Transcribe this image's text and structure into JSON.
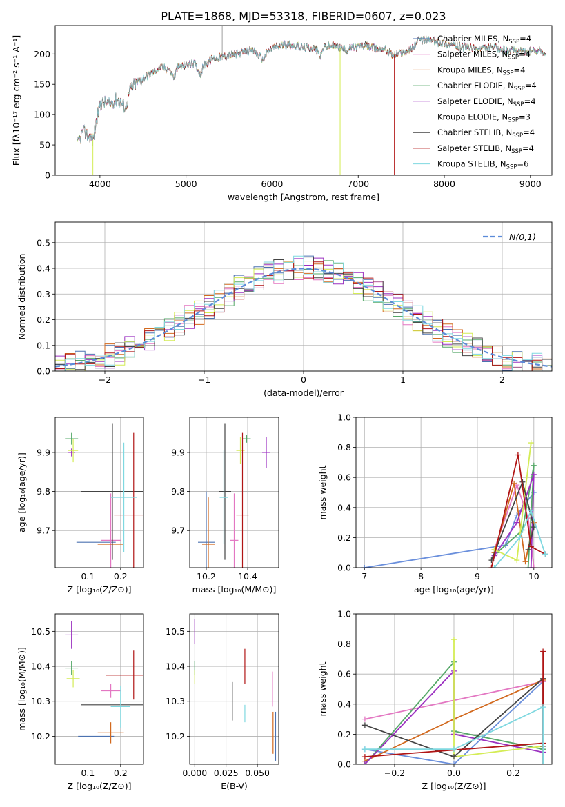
{
  "figure_title": "PLATE=1868, MJD=53318, FIBERID=0607, z=0.023",
  "colors": {
    "chabrier_miles": "#4c72b0",
    "salpeter_miles": "#e377c2",
    "kroupa_miles": "#d2691e",
    "chabrier_elodie": "#55a868",
    "salpeter_elodie": "#9b30c0",
    "kroupa_elodie": "#d4ec55",
    "chabrier_stelib": "#444444",
    "salpeter_stelib": "#b01515",
    "kroupa_stelib": "#7fd8e0",
    "chabrier_miles_age": "#6a8fdc",
    "normal_curve": "#5b8bd9"
  },
  "legend": [
    {
      "key": "chabrier_miles",
      "label_main": "Chabrier MILES, N",
      "sub": "SSP",
      "label_end": "=4"
    },
    {
      "key": "salpeter_miles",
      "label_main": "Salpeter MILES, N",
      "sub": "SSP",
      "label_end": "=4"
    },
    {
      "key": "kroupa_miles",
      "label_main": "Kroupa MILES, N",
      "sub": "SSP",
      "label_end": "=4"
    },
    {
      "key": "chabrier_elodie",
      "label_main": "Chabrier ELODIE, N",
      "sub": "SSP",
      "label_end": "=4"
    },
    {
      "key": "salpeter_elodie",
      "label_main": "Salpeter ELODIE, N",
      "sub": "SSP",
      "label_end": "=4"
    },
    {
      "key": "kroupa_elodie",
      "label_main": "Kroupa ELODIE, N",
      "sub": "SSP",
      "label_end": "=3"
    },
    {
      "key": "chabrier_stelib",
      "label_main": "Chabrier STELIB, N",
      "sub": "SSP",
      "label_end": "=4"
    },
    {
      "key": "salpeter_stelib",
      "label_main": "Salpeter STELIB, N",
      "sub": "SSP",
      "label_end": "=4"
    },
    {
      "key": "kroupa_stelib",
      "label_main": "Kroupa STELIB, N",
      "sub": "SSP",
      "label_end": "=6"
    }
  ],
  "chart_data": [
    {
      "id": "spectrum",
      "type": "line",
      "xlabel": "wavelength [Angstrom, rest frame]",
      "ylabel": "Flux [fλ10⁻¹⁷ erg cm⁻² s⁻¹ A⁻¹]",
      "xlim": [
        3480,
        9250
      ],
      "ylim": [
        0,
        247
      ],
      "xticks": [
        4000,
        5000,
        6000,
        7000,
        8000,
        9000
      ],
      "yticks": [
        0,
        50,
        100,
        150,
        200
      ],
      "continuum": [
        [
          3740,
          50
        ],
        [
          3800,
          72
        ],
        [
          3860,
          66
        ],
        [
          3920,
          58
        ],
        [
          3960,
          90
        ],
        [
          4000,
          118
        ],
        [
          4050,
          120
        ],
        [
          4100,
          116
        ],
        [
          4200,
          126
        ],
        [
          4250,
          118
        ],
        [
          4300,
          112
        ],
        [
          4350,
          142
        ],
        [
          4400,
          150
        ],
        [
          4500,
          160
        ],
        [
          4600,
          168
        ],
        [
          4700,
          178
        ],
        [
          4800,
          176
        ],
        [
          4860,
          160
        ],
        [
          4900,
          178
        ],
        [
          5000,
          182
        ],
        [
          5100,
          185
        ],
        [
          5170,
          165
        ],
        [
          5200,
          180
        ],
        [
          5300,
          192
        ],
        [
          5400,
          195
        ],
        [
          5500,
          198
        ],
        [
          5600,
          200
        ],
        [
          5700,
          204
        ],
        [
          5800,
          205
        ],
        [
          5890,
          190
        ],
        [
          5950,
          204
        ],
        [
          6000,
          210
        ],
        [
          6100,
          214
        ],
        [
          6200,
          216
        ],
        [
          6300,
          212
        ],
        [
          6400,
          210
        ],
        [
          6500,
          210
        ],
        [
          6563,
          196
        ],
        [
          6600,
          212
        ],
        [
          6700,
          214
        ],
        [
          6800,
          210
        ],
        [
          6870,
          205
        ],
        [
          6900,
          210
        ],
        [
          7000,
          212
        ],
        [
          7100,
          214
        ],
        [
          7200,
          208
        ],
        [
          7300,
          210
        ],
        [
          7400,
          198
        ],
        [
          7500,
          202
        ],
        [
          7600,
          206
        ],
        [
          7700,
          222
        ],
        [
          7800,
          224
        ],
        [
          7900,
          220
        ],
        [
          8000,
          218
        ],
        [
          8100,
          214
        ],
        [
          8200,
          212
        ],
        [
          8300,
          210
        ],
        [
          8400,
          208
        ],
        [
          8500,
          210
        ],
        [
          8600,
          210
        ],
        [
          8700,
          206
        ],
        [
          8800,
          206
        ],
        [
          8900,
          205
        ],
        [
          9000,
          204
        ],
        [
          9100,
          206
        ],
        [
          9180,
          202
        ]
      ],
      "artifacts": [
        {
          "series": "kroupa_elodie",
          "x": 3918,
          "y": 0
        },
        {
          "series": "kroupa_elodie",
          "x": 6790,
          "y": 0
        },
        {
          "series": "salpeter_stelib",
          "x": 7420,
          "y": 0
        }
      ]
    },
    {
      "id": "residual_hist",
      "type": "histogram",
      "xlabel": "(data-model)/error",
      "ylabel": "Normed distribution",
      "xlim": [
        -2.5,
        2.5
      ],
      "ylim": [
        0,
        0.58
      ],
      "xticks": [
        -2,
        -1,
        0,
        1,
        2
      ],
      "yticks": [
        0.0,
        0.1,
        0.2,
        0.3,
        0.4,
        0.5
      ],
      "bin_width": 0.1,
      "reference_curve": "N(0,1)",
      "series": [
        {
          "key": "chabrier_miles",
          "seed": 1
        },
        {
          "key": "salpeter_miles",
          "seed": 2
        },
        {
          "key": "kroupa_miles",
          "seed": 3
        },
        {
          "key": "chabrier_elodie",
          "seed": 4
        },
        {
          "key": "salpeter_elodie",
          "seed": 5
        },
        {
          "key": "kroupa_elodie",
          "seed": 6
        },
        {
          "key": "chabrier_stelib",
          "seed": 7
        },
        {
          "key": "salpeter_stelib",
          "seed": 8
        },
        {
          "key": "kroupa_stelib",
          "seed": 9
        }
      ]
    },
    {
      "id": "age_vs_Z",
      "type": "scatter",
      "xlabel": "Z [log₁₀(Z/Z⊙)]",
      "ylabel": "age  [log₁₀(age/yr)]",
      "xlim": [
        0.0,
        0.27
      ],
      "ylim": [
        9.605,
        9.99
      ],
      "xticks": [
        0.1,
        0.2
      ],
      "yticks": [
        9.7,
        9.8,
        9.9
      ],
      "points": [
        {
          "series": "chabrier_miles",
          "x": 0.125,
          "y": 9.67,
          "xerr": 0.06,
          "yerr": 0.0
        },
        {
          "series": "salpeter_miles",
          "x": 0.17,
          "y": 9.675,
          "xerr": 0.03,
          "yerr": 0.12
        },
        {
          "series": "kroupa_miles",
          "x": 0.17,
          "y": 9.665,
          "xerr": 0.04,
          "yerr": 0.0
        },
        {
          "series": "chabrier_elodie",
          "x": 0.05,
          "y": 9.935,
          "xerr": 0.02,
          "yerr": 0.015
        },
        {
          "series": "salpeter_elodie",
          "x": 0.05,
          "y": 9.9,
          "xerr": 0.01,
          "yerr": 0.01
        },
        {
          "series": "kroupa_elodie",
          "x": 0.055,
          "y": 9.905,
          "xerr": 0.015,
          "yerr": 0.03
        },
        {
          "series": "chabrier_stelib",
          "x": 0.175,
          "y": 9.8,
          "xerr": 0.095,
          "yerr": 0.175
        },
        {
          "series": "salpeter_stelib",
          "x": 0.24,
          "y": 9.74,
          "xerr": 0.06,
          "yerr": 0.21
        },
        {
          "series": "kroupa_stelib",
          "x": 0.21,
          "y": 9.785,
          "xerr": 0.04,
          "yerr": 0.14
        }
      ]
    },
    {
      "id": "age_vs_mass",
      "type": "scatter",
      "xlabel": "mass [log₁₀(M/M⊙)]",
      "ylabel": "",
      "xlim": [
        10.12,
        10.55
      ],
      "ylim": [
        9.605,
        9.99
      ],
      "xticks": [
        10.2,
        10.4
      ],
      "yticks": [
        9.7,
        9.8,
        9.9
      ],
      "points": [
        {
          "series": "chabrier_miles",
          "x": 10.2,
          "y": 9.67,
          "xerr": 0.04,
          "yerr": 0.13
        },
        {
          "series": "salpeter_miles",
          "x": 10.335,
          "y": 9.675,
          "xerr": 0.02,
          "yerr": 0.12
        },
        {
          "series": "kroupa_miles",
          "x": 10.21,
          "y": 9.665,
          "xerr": 0.03,
          "yerr": 0.12
        },
        {
          "series": "chabrier_elodie",
          "x": 10.395,
          "y": 9.935,
          "xerr": 0.02,
          "yerr": 0.01
        },
        {
          "series": "salpeter_elodie",
          "x": 10.49,
          "y": 9.9,
          "xerr": 0.02,
          "yerr": 0.04
        },
        {
          "series": "kroupa_elodie",
          "x": 10.365,
          "y": 9.905,
          "xerr": 0.02,
          "yerr": 0.035
        },
        {
          "series": "chabrier_stelib",
          "x": 10.29,
          "y": 9.8,
          "xerr": 0.03,
          "yerr": 0.175
        },
        {
          "series": "salpeter_stelib",
          "x": 10.375,
          "y": 9.74,
          "xerr": 0.03,
          "yerr": 0.21
        },
        {
          "series": "kroupa_stelib",
          "x": 10.285,
          "y": 9.785,
          "xerr": 0.02,
          "yerr": 0.12
        }
      ]
    },
    {
      "id": "weight_vs_age",
      "type": "line",
      "xlabel": "age  [log₁₀(age/yr)]",
      "ylabel": "mass weight",
      "xlim": [
        6.85,
        10.32
      ],
      "ylim": [
        0,
        1.0
      ],
      "xticks": [
        7,
        8,
        9,
        10
      ],
      "yticks": [
        0.0,
        0.2,
        0.4,
        0.6,
        0.8,
        1.0
      ],
      "series": [
        {
          "key": "chabrier_miles_age",
          "x": [
            7.0,
            9.5,
            9.7,
            10.0
          ],
          "y": [
            0.0,
            0.15,
            0.35,
            0.5
          ]
        },
        {
          "key": "salpeter_miles",
          "x": [
            9.3,
            9.7,
            9.9,
            10.0
          ],
          "y": [
            0.12,
            0.55,
            0.33,
            0.0
          ]
        },
        {
          "key": "kroupa_miles",
          "x": [
            9.3,
            9.65,
            9.85,
            10.0
          ],
          "y": [
            0.1,
            0.56,
            0.04,
            0.3
          ]
        },
        {
          "key": "chabrier_elodie",
          "x": [
            9.35,
            9.8,
            10.0,
            9.9
          ],
          "y": [
            0.1,
            0.25,
            0.68,
            0.0
          ]
        },
        {
          "key": "salpeter_elodie",
          "x": [
            9.3,
            9.7,
            10.0,
            9.95
          ],
          "y": [
            0.08,
            0.3,
            0.62,
            0.0
          ]
        },
        {
          "key": "kroupa_elodie",
          "x": [
            9.3,
            9.7,
            9.95
          ],
          "y": [
            0.12,
            0.05,
            0.83
          ]
        },
        {
          "key": "chabrier_stelib",
          "x": [
            9.25,
            9.8,
            10.0,
            9.9
          ],
          "y": [
            0.05,
            0.57,
            0.27,
            0.12
          ]
        },
        {
          "key": "salpeter_stelib",
          "x": [
            9.25,
            9.72,
            9.95,
            10.2
          ],
          "y": [
            0.0,
            0.75,
            0.14,
            0.09
          ]
        },
        {
          "key": "kroupa_stelib",
          "x": [
            9.3,
            9.75,
            9.95,
            10.2
          ],
          "y": [
            0.0,
            0.2,
            0.38,
            0.09
          ]
        }
      ]
    },
    {
      "id": "mass_vs_Z",
      "type": "scatter",
      "xlabel": "Z [log₁₀(Z/Z⊙)]",
      "ylabel": "mass [log₁₀(M/M⊙)]",
      "xlim": [
        0.0,
        0.27
      ],
      "ylim": [
        10.12,
        10.55
      ],
      "xticks": [
        0.1,
        0.2
      ],
      "yticks": [
        10.2,
        10.3,
        10.4,
        10.5
      ],
      "points": [
        {
          "series": "chabrier_miles",
          "x": 0.125,
          "y": 10.2,
          "xerr": 0.055,
          "yerr": 0.0
        },
        {
          "series": "salpeter_miles",
          "x": 0.17,
          "y": 10.33,
          "xerr": 0.03,
          "yerr": 0.02
        },
        {
          "series": "kroupa_miles",
          "x": 0.17,
          "y": 10.21,
          "xerr": 0.04,
          "yerr": 0.03
        },
        {
          "series": "chabrier_elodie",
          "x": 0.05,
          "y": 10.395,
          "xerr": 0.02,
          "yerr": 0.02
        },
        {
          "series": "salpeter_elodie",
          "x": 0.05,
          "y": 10.49,
          "xerr": 0.02,
          "yerr": 0.04
        },
        {
          "series": "kroupa_elodie",
          "x": 0.055,
          "y": 10.365,
          "xerr": 0.02,
          "yerr": 0.025
        },
        {
          "series": "chabrier_stelib",
          "x": 0.175,
          "y": 10.29,
          "xerr": 0.095,
          "yerr": 0.0
        },
        {
          "series": "salpeter_stelib",
          "x": 0.24,
          "y": 10.375,
          "xerr": 0.085,
          "yerr": 0.07
        },
        {
          "series": "kroupa_stelib",
          "x": 0.2,
          "y": 10.285,
          "xerr": 0.03,
          "yerr": 0.06
        }
      ]
    },
    {
      "id": "mass_vs_ebv",
      "type": "scatter",
      "xlabel": "E(B-V)",
      "ylabel": "",
      "xlim": [
        -0.004,
        0.067
      ],
      "ylim": [
        10.12,
        10.55
      ],
      "xticks": [
        0.0,
        0.025,
        0.05
      ],
      "xticklabels": [
        "0.000",
        "0.025",
        "0.050"
      ],
      "yticks": [
        10.2,
        10.3,
        10.4,
        10.5
      ],
      "points": [
        {
          "series": "chabrier_miles",
          "x": 0.0645,
          "y": 10.2,
          "xerr": 0.0,
          "yerr": 0.07
        },
        {
          "series": "salpeter_miles",
          "x": 0.062,
          "y": 10.335,
          "xerr": 0.0,
          "yerr": 0.05
        },
        {
          "series": "kroupa_miles",
          "x": 0.0625,
          "y": 10.21,
          "xerr": 0.0,
          "yerr": 0.06
        },
        {
          "series": "chabrier_elodie",
          "x": 0.0,
          "y": 10.395,
          "xerr": 0.0,
          "yerr": 0.02
        },
        {
          "series": "salpeter_elodie",
          "x": 0.0,
          "y": 10.5,
          "xerr": 0.0,
          "yerr": 0.035
        },
        {
          "series": "kroupa_elodie",
          "x": 0.0,
          "y": 10.37,
          "xerr": 0.0,
          "yerr": 0.02
        },
        {
          "series": "chabrier_stelib",
          "x": 0.03,
          "y": 10.3,
          "xerr": 0.0,
          "yerr": 0.055
        },
        {
          "series": "salpeter_stelib",
          "x": 0.04,
          "y": 10.4,
          "xerr": 0.0,
          "yerr": 0.05
        },
        {
          "series": "kroupa_stelib",
          "x": 0.04,
          "y": 10.265,
          "xerr": 0.0,
          "yerr": 0.025
        }
      ]
    },
    {
      "id": "weight_vs_Z",
      "type": "line",
      "xlabel": "Z [log₁₀(Z/Z⊙)]",
      "ylabel": "mass weight",
      "xlim": [
        -0.33,
        0.33
      ],
      "ylim": [
        0,
        1.0
      ],
      "xticks": [
        -0.2,
        0.0,
        0.2
      ],
      "xticklabels": [
        "−0.2",
        "0.0",
        "0.2"
      ],
      "yticks": [
        0.0,
        0.2,
        0.4,
        0.6,
        0.8,
        1.0
      ],
      "series": [
        {
          "key": "chabrier_miles_age",
          "x": [
            -0.3,
            0.0,
            0.3
          ],
          "y": [
            0.1,
            0.0,
            0.55
          ]
        },
        {
          "key": "salpeter_miles",
          "x": [
            -0.3,
            0.3
          ],
          "y": [
            0.3,
            0.55
          ]
        },
        {
          "key": "kroupa_miles",
          "x": [
            -0.3,
            0.0,
            0.3
          ],
          "y": [
            0.02,
            0.3,
            0.56
          ]
        },
        {
          "key": "chabrier_elodie",
          "x": [
            -0.3,
            0.0,
            0.0,
            0.3
          ],
          "y": [
            0.0,
            0.68,
            0.22,
            0.1
          ]
        },
        {
          "key": "salpeter_elodie",
          "x": [
            -0.3,
            0.0,
            0.0,
            0.3
          ],
          "y": [
            0.0,
            0.62,
            0.2,
            0.08
          ]
        },
        {
          "key": "kroupa_elodie",
          "x": [
            0.0,
            0.0,
            0.3
          ],
          "y": [
            0.83,
            0.05,
            0.12
          ]
        },
        {
          "key": "chabrier_stelib",
          "x": [
            -0.3,
            0.0,
            0.3,
            0.3
          ],
          "y": [
            0.26,
            0.05,
            0.57,
            0.12
          ]
        },
        {
          "key": "salpeter_stelib",
          "x": [
            -0.3,
            0.3,
            0.3,
            0.3
          ],
          "y": [
            0.05,
            0.14,
            0.75,
            0.0
          ]
        },
        {
          "key": "kroupa_stelib",
          "x": [
            -0.3,
            0.0,
            0.3,
            0.3
          ],
          "y": [
            0.1,
            0.1,
            0.38,
            0.0
          ]
        }
      ]
    }
  ]
}
